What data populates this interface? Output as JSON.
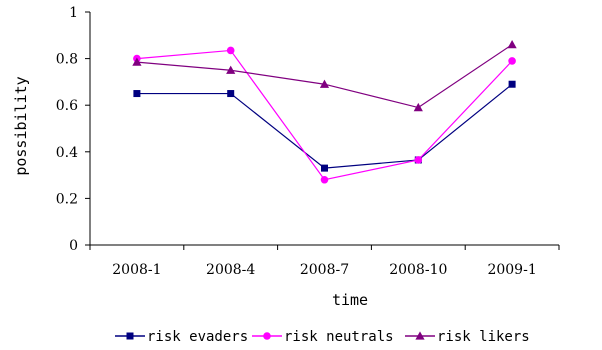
{
  "chart_data": {
    "type": "line",
    "categories": [
      "2008-1",
      "2008-4",
      "2008-7",
      "2008-10",
      "2009-1"
    ],
    "series": [
      {
        "name": "risk evaders",
        "values": [
          0.65,
          0.65,
          0.33,
          0.365,
          0.69
        ],
        "color": "#000080",
        "marker": "square"
      },
      {
        "name": "risk neutrals",
        "values": [
          0.8,
          0.835,
          0.28,
          0.365,
          0.79
        ],
        "color": "#ff00ff",
        "marker": "circle"
      },
      {
        "name": "risk likers",
        "values": [
          0.785,
          0.75,
          0.69,
          0.59,
          0.86
        ],
        "color": "#800080",
        "marker": "triangle"
      }
    ],
    "xlabel": "time",
    "ylabel": "possibility",
    "ylim": [
      0,
      1
    ],
    "yticks": [
      "0",
      "0.2",
      "0.4",
      "0.6",
      "0.8",
      "1"
    ],
    "grid": false,
    "legend": "bottom"
  }
}
